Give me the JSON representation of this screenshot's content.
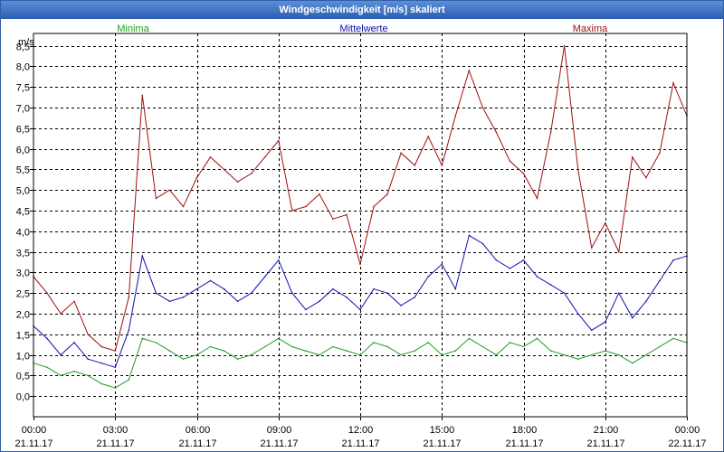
{
  "window": {
    "title": "Windgeschwindigkeit [m/s] skaliert"
  },
  "chart_data": {
    "type": "line",
    "title": "Windgeschwindigkeit [m/s] skaliert",
    "ylabel": "m/s",
    "ylim": [
      -0.5,
      8.8
    ],
    "xlim": [
      0,
      24
    ],
    "yticks": [
      0,
      0.5,
      1,
      1.5,
      2,
      2.5,
      3,
      3.5,
      4,
      4.5,
      5,
      5.5,
      6,
      6.5,
      7,
      7.5,
      8,
      8.5
    ],
    "ytick_labels": [
      "0,0",
      "0,5",
      "1,0",
      "1,5",
      "2,0",
      "2,5",
      "3,0",
      "3,5",
      "4,0",
      "4,5",
      "5,0",
      "5,5",
      "6,0",
      "6,5",
      "7,0",
      "7,5",
      "8,0",
      "8,5"
    ],
    "xticks": [
      {
        "time": "00:00",
        "date": "21.11.17"
      },
      {
        "time": "03:00",
        "date": "21.11.17"
      },
      {
        "time": "06:00",
        "date": "21.11.17"
      },
      {
        "time": "09:00",
        "date": "21.11.17"
      },
      {
        "time": "12:00",
        "date": "21.11.17"
      },
      {
        "time": "15:00",
        "date": "21.11.17"
      },
      {
        "time": "18:00",
        "date": "21.11.17"
      },
      {
        "time": "21:00",
        "date": "21.11.17"
      },
      {
        "time": "00:00",
        "date": "22.11.17"
      }
    ],
    "grid": true,
    "legend_position": "top",
    "colors": {
      "Minima": "#1e9e1e",
      "Mittelwerte": "#1010b0",
      "Maxima": "#a01010",
      "grid": "#000000"
    },
    "x_hours": [
      0,
      0.5,
      1,
      1.5,
      2,
      2.5,
      3,
      3.5,
      4,
      4.5,
      5,
      5.5,
      6,
      6.5,
      7,
      7.5,
      8,
      8.5,
      9,
      9.5,
      10,
      10.5,
      11,
      11.5,
      12,
      12.5,
      13,
      13.5,
      14,
      14.5,
      15,
      15.5,
      16,
      16.5,
      17,
      17.5,
      18,
      18.5,
      19,
      19.5,
      20,
      20.5,
      21,
      21.5,
      22,
      22.5,
      23,
      23.5,
      24
    ],
    "series": [
      {
        "name": "Minima",
        "values": [
          0.8,
          0.7,
          0.5,
          0.6,
          0.5,
          0.3,
          0.2,
          0.4,
          1.4,
          1.3,
          1.1,
          0.9,
          1.0,
          1.2,
          1.1,
          0.9,
          1.0,
          1.2,
          1.4,
          1.2,
          1.1,
          1.0,
          1.2,
          1.1,
          1.0,
          1.3,
          1.2,
          1.0,
          1.1,
          1.3,
          1.0,
          1.1,
          1.4,
          1.2,
          1.0,
          1.3,
          1.2,
          1.4,
          1.1,
          1.0,
          0.9,
          1.0,
          1.1,
          1.0,
          0.8,
          1.0,
          1.2,
          1.4,
          1.3
        ]
      },
      {
        "name": "Mittelwerte",
        "values": [
          1.7,
          1.4,
          1.0,
          1.3,
          0.9,
          0.8,
          0.7,
          1.6,
          3.4,
          2.5,
          2.3,
          2.4,
          2.6,
          2.8,
          2.6,
          2.3,
          2.5,
          2.9,
          3.3,
          2.5,
          2.1,
          2.3,
          2.6,
          2.4,
          2.1,
          2.6,
          2.5,
          2.2,
          2.4,
          2.9,
          3.2,
          2.6,
          3.9,
          3.7,
          3.3,
          3.1,
          3.3,
          2.9,
          2.7,
          2.5,
          2.0,
          1.6,
          1.8,
          2.5,
          1.9,
          2.3,
          2.8,
          3.3,
          3.4
        ]
      },
      {
        "name": "Maxima",
        "values": [
          2.9,
          2.5,
          2.0,
          2.3,
          1.5,
          1.2,
          1.1,
          2.4,
          7.3,
          4.8,
          5.0,
          4.6,
          5.3,
          5.8,
          5.5,
          5.2,
          5.4,
          5.8,
          6.2,
          4.5,
          4.6,
          4.9,
          4.3,
          4.4,
          3.2,
          4.6,
          4.9,
          5.9,
          5.6,
          6.3,
          5.6,
          6.8,
          7.9,
          7.0,
          6.4,
          5.7,
          5.4,
          4.8,
          6.4,
          8.5,
          5.5,
          3.6,
          4.2,
          3.5,
          5.8,
          5.3,
          5.9,
          7.6,
          6.8
        ]
      }
    ]
  }
}
